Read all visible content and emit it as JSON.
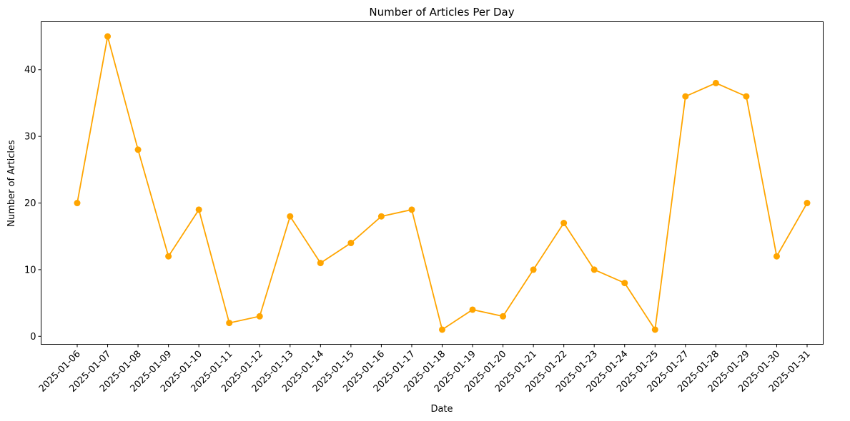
{
  "chart_data": {
    "type": "line",
    "title": "Number of Articles Per Day",
    "xlabel": "Date",
    "ylabel": "Number of Articles",
    "color": "#ffa500",
    "marker": "circle",
    "grid": false,
    "ylim": [
      -1.2,
      47.2
    ],
    "yticks": [
      0,
      10,
      20,
      30,
      40
    ],
    "categories": [
      "2025-01-06",
      "2025-01-07",
      "2025-01-08",
      "2025-01-09",
      "2025-01-10",
      "2025-01-11",
      "2025-01-12",
      "2025-01-13",
      "2025-01-14",
      "2025-01-15",
      "2025-01-16",
      "2025-01-17",
      "2025-01-18",
      "2025-01-19",
      "2025-01-20",
      "2025-01-21",
      "2025-01-22",
      "2025-01-23",
      "2025-01-24",
      "2025-01-25",
      "2025-01-27",
      "2025-01-28",
      "2025-01-29",
      "2025-01-30",
      "2025-01-31"
    ],
    "values": [
      20,
      45,
      28,
      12,
      19,
      2,
      3,
      18,
      11,
      14,
      18,
      19,
      1,
      4,
      3,
      10,
      17,
      10,
      8,
      1,
      36,
      38,
      36,
      12,
      20
    ]
  }
}
